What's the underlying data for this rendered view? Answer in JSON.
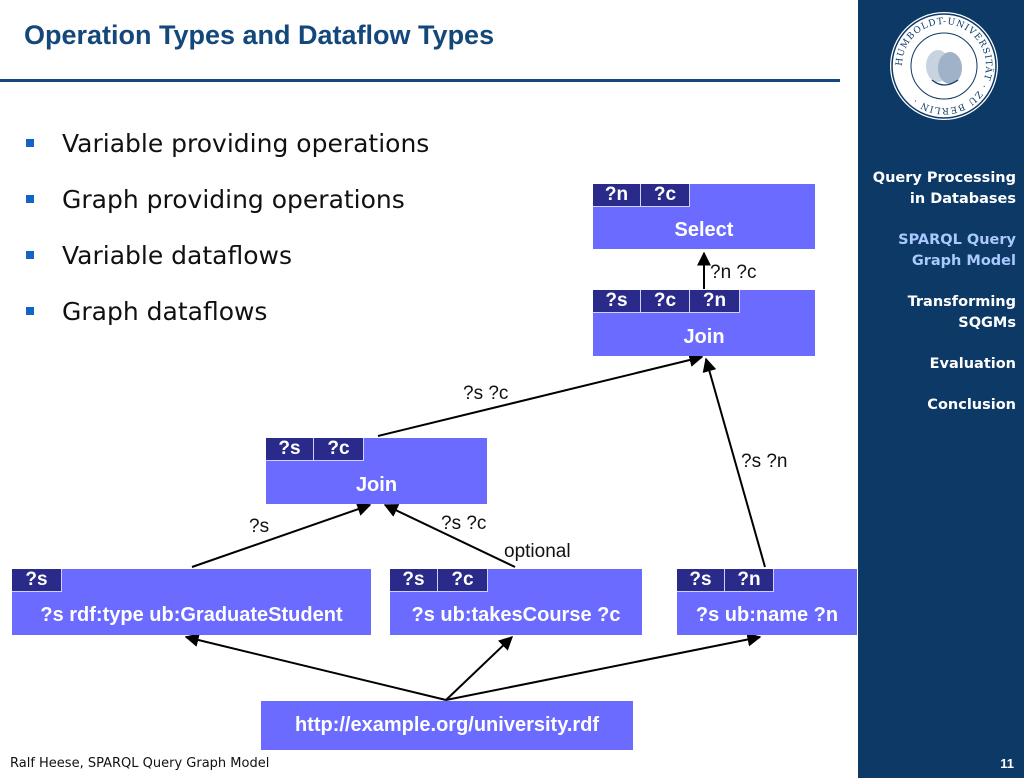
{
  "title": "Operation Types and Dataflow Types",
  "bullets": [
    "Variable providing operations",
    "Graph providing operations",
    "Variable dataflows",
    "Graph dataflows"
  ],
  "sidebar": {
    "seal_text": "HUMBOLDT-UNIVERSITÄT · ZU BERLIN ·",
    "items": [
      "Query Processing in Databases",
      "SPARQL Query Graph Model",
      "Transforming SQGMs",
      "Evaluation",
      "Conclusion"
    ],
    "active_index": 1
  },
  "diagram": {
    "nodes": {
      "select": {
        "vars": [
          "?n",
          "?c"
        ],
        "label": "Select"
      },
      "join_top": {
        "vars": [
          "?s",
          "?c",
          "?n"
        ],
        "label": "Join"
      },
      "join_mid": {
        "vars": [
          "?s",
          "?c"
        ],
        "label": "Join"
      },
      "pattern_type": {
        "vars": [
          "?s"
        ],
        "label": "?s rdf:type ub:GraduateStudent"
      },
      "pattern_course": {
        "vars": [
          "?s",
          "?c"
        ],
        "label": "?s ub:takesCourse ?c"
      },
      "pattern_name": {
        "vars": [
          "?s",
          "?n"
        ],
        "label": "?s ub:name ?n"
      },
      "source": {
        "label": "http://example.org/university.rdf"
      }
    },
    "edge_labels": {
      "nc": "?n ?c",
      "sc_top": "?s ?c",
      "sn": "?s ?n",
      "s": "?s",
      "sc_mid": "?s ?c",
      "optional": "optional"
    }
  },
  "footer": {
    "author": "Ralf Heese, SPARQL Query Graph Model",
    "page": "11"
  },
  "colors": {
    "title": "#14477a",
    "sidebar": "#0d3966",
    "operation": "#6b6bff",
    "variable": "#2a2a8a",
    "bullet": "#1464c8"
  }
}
